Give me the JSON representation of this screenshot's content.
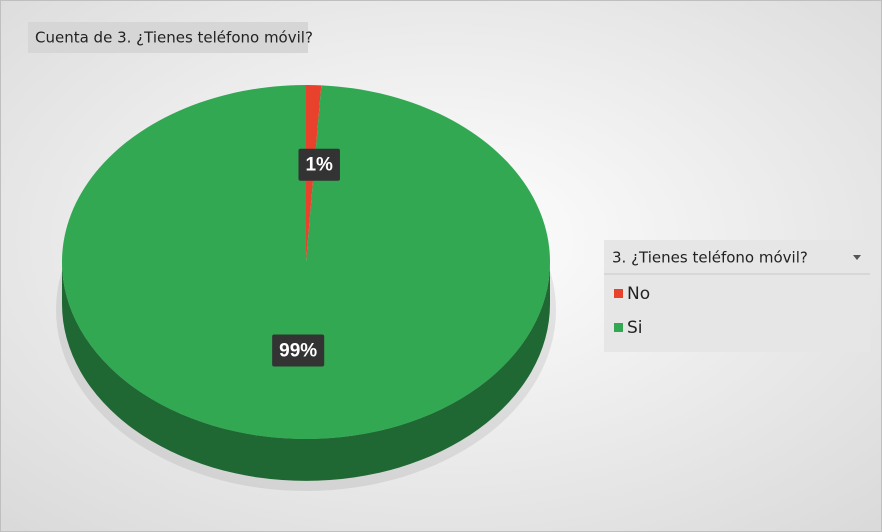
{
  "chart_data": {
    "type": "pie",
    "title": "Cuenta de 3. ¿Tienes teléfono móvil?",
    "legend_title": "3. ¿Tienes teléfono móvil?",
    "categories": [
      "No",
      "Si"
    ],
    "values": [
      1,
      99
    ],
    "value_labels": [
      "1%",
      "99%"
    ],
    "colors": [
      "#e8412c",
      "#33a852"
    ],
    "legend": "right"
  }
}
